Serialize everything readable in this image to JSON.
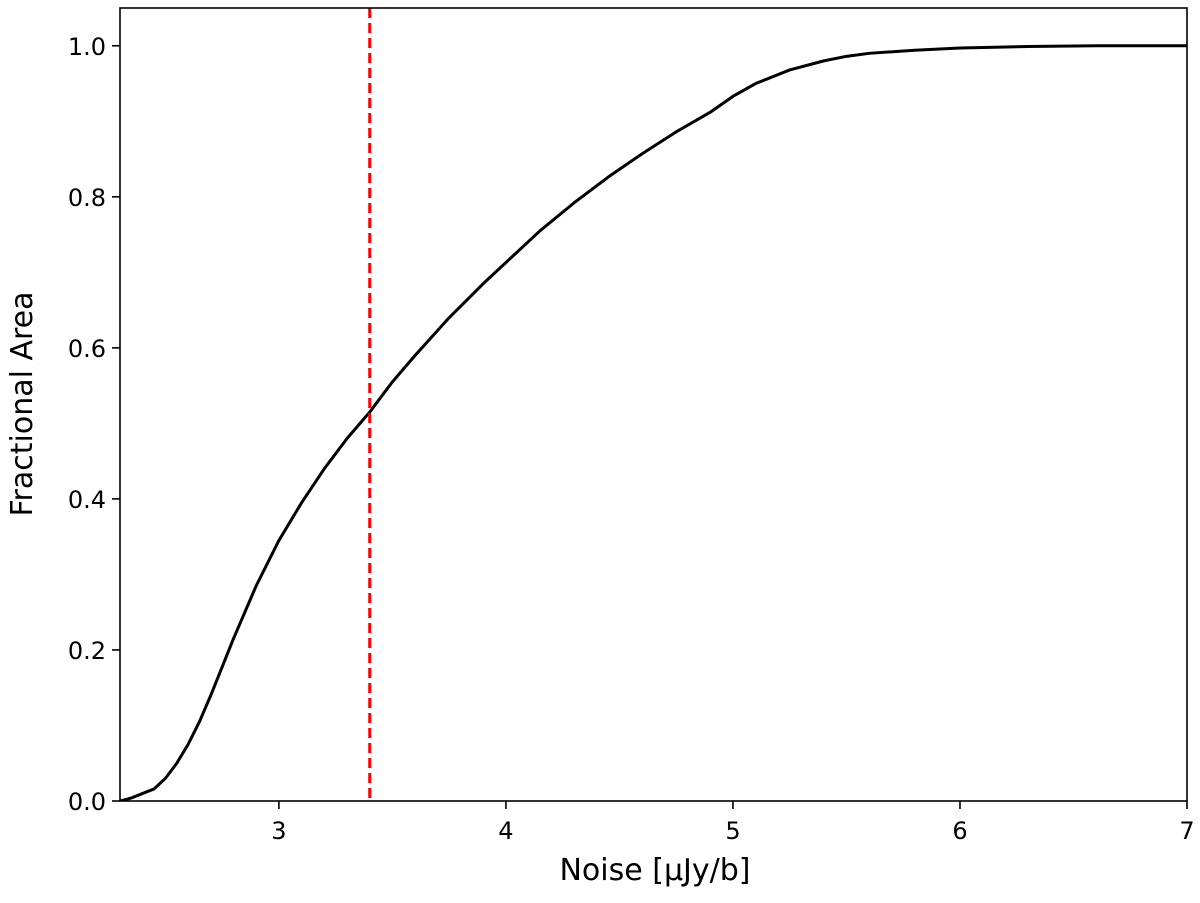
{
  "chart_data": {
    "type": "line",
    "title": "",
    "xlabel": "Noise [μJy/b]",
    "ylabel": "Fractional Area",
    "xlim": [
      2.3,
      7.0
    ],
    "ylim": [
      0.0,
      1.05
    ],
    "x_ticks": [
      3,
      4,
      5,
      6,
      7
    ],
    "x_tick_labels": [
      "3",
      "4",
      "5",
      "6",
      "7"
    ],
    "y_ticks": [
      0.0,
      0.2,
      0.4,
      0.6,
      0.8,
      1.0
    ],
    "y_tick_labels": [
      "0.0",
      "0.2",
      "0.4",
      "0.6",
      "0.8",
      "1.0"
    ],
    "grid": false,
    "series": [
      {
        "color": "#000000",
        "style": "solid",
        "x": [
          2.3,
          2.35,
          2.4,
          2.45,
          2.5,
          2.55,
          2.6,
          2.65,
          2.7,
          2.8,
          2.9,
          3.0,
          3.1,
          3.2,
          3.3,
          3.4,
          3.5,
          3.6,
          3.75,
          3.9,
          4.0,
          4.15,
          4.3,
          4.45,
          4.6,
          4.75,
          4.9,
          5.0,
          5.1,
          5.25,
          5.4,
          5.5,
          5.6,
          5.8,
          6.0,
          6.3,
          6.6,
          7.0
        ],
        "y": [
          0.0,
          0.004,
          0.01,
          0.016,
          0.03,
          0.05,
          0.075,
          0.105,
          0.14,
          0.215,
          0.285,
          0.345,
          0.395,
          0.44,
          0.48,
          0.515,
          0.555,
          0.59,
          0.64,
          0.685,
          0.713,
          0.755,
          0.792,
          0.826,
          0.857,
          0.886,
          0.912,
          0.933,
          0.95,
          0.968,
          0.98,
          0.986,
          0.99,
          0.994,
          0.997,
          0.999,
          1.0,
          1.0
        ]
      }
    ],
    "reference_lines": [
      {
        "orientation": "vertical",
        "x": 3.4,
        "color": "#ff0000",
        "style": "dashed"
      }
    ]
  }
}
